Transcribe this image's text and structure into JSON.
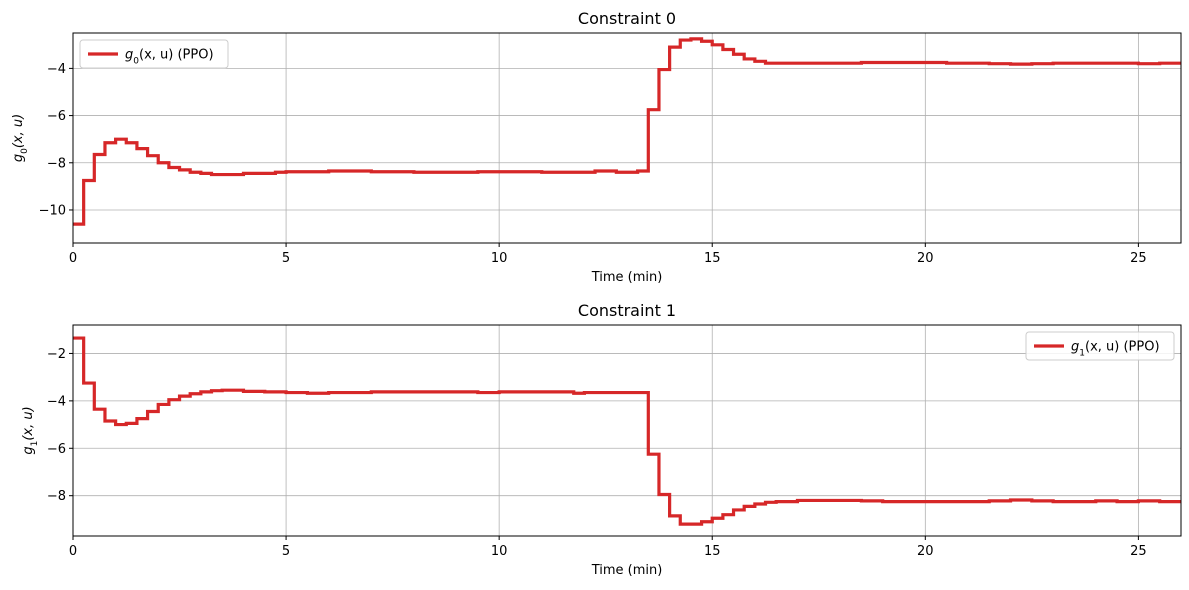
{
  "chart_data": [
    {
      "type": "line",
      "step": true,
      "title": "Constraint 0",
      "xlabel": "Time (min)",
      "ylabel": {
        "base": "g",
        "sub": "0",
        "rest": "(x, u)"
      },
      "xlim": [
        0,
        26
      ],
      "ylim": [
        -11.4,
        -2.5
      ],
      "xticks": [
        0,
        5,
        10,
        15,
        20,
        25
      ],
      "yticks": [
        -10,
        -8,
        -6,
        -4
      ],
      "grid": true,
      "legend_position": "top-left",
      "series": [
        {
          "legend": {
            "base": "g",
            "sub": "0",
            "rest": "(x, u) (PPO)"
          },
          "color": "#d62728",
          "x": [
            0,
            0.25,
            0.5,
            0.75,
            1.0,
            1.25,
            1.5,
            1.75,
            2.0,
            2.25,
            2.5,
            2.75,
            3.0,
            3.25,
            3.5,
            3.75,
            4.0,
            4.25,
            4.5,
            4.75,
            5.0,
            5.5,
            6.0,
            7.0,
            8.0,
            9.0,
            9.5,
            10.0,
            11.0,
            12.0,
            12.25,
            12.5,
            12.75,
            13.0,
            13.25,
            13.5,
            13.75,
            14.0,
            14.25,
            14.5,
            14.75,
            15.0,
            15.25,
            15.5,
            15.75,
            16.0,
            16.25,
            16.5,
            17.0,
            18.0,
            18.5,
            19.0,
            19.5,
            20.0,
            20.5,
            21.0,
            21.5,
            22.0,
            22.5,
            23.0,
            23.5,
            24.0,
            24.5,
            25.0,
            25.5,
            26.0
          ],
          "y": [
            -10.6,
            -8.75,
            -7.65,
            -7.15,
            -7.0,
            -7.15,
            -7.4,
            -7.7,
            -8.0,
            -8.2,
            -8.3,
            -8.4,
            -8.45,
            -8.5,
            -8.5,
            -8.5,
            -8.45,
            -8.45,
            -8.45,
            -8.4,
            -8.38,
            -8.38,
            -8.35,
            -8.38,
            -8.4,
            -8.4,
            -8.38,
            -8.38,
            -8.4,
            -8.4,
            -8.35,
            -8.35,
            -8.4,
            -8.4,
            -8.35,
            -5.75,
            -4.05,
            -3.1,
            -2.8,
            -2.75,
            -2.85,
            -3.0,
            -3.2,
            -3.4,
            -3.6,
            -3.7,
            -3.78,
            -3.78,
            -3.78,
            -3.78,
            -3.75,
            -3.75,
            -3.75,
            -3.75,
            -3.78,
            -3.78,
            -3.8,
            -3.82,
            -3.8,
            -3.78,
            -3.78,
            -3.78,
            -3.78,
            -3.8,
            -3.78,
            -3.78
          ]
        }
      ]
    },
    {
      "type": "line",
      "step": true,
      "title": "Constraint 1",
      "xlabel": "Time (min)",
      "ylabel": {
        "base": "g",
        "sub": "1",
        "rest": "(x, u)"
      },
      "xlim": [
        0,
        26
      ],
      "ylim": [
        -9.7,
        -0.8
      ],
      "xticks": [
        0,
        5,
        10,
        15,
        20,
        25
      ],
      "yticks": [
        -8,
        -6,
        -4,
        -2
      ],
      "grid": true,
      "legend_position": "top-right",
      "series": [
        {
          "legend": {
            "base": "g",
            "sub": "1",
            "rest": "(x, u) (PPO)"
          },
          "color": "#d62728",
          "x": [
            0,
            0.25,
            0.5,
            0.75,
            1.0,
            1.25,
            1.5,
            1.75,
            2.0,
            2.25,
            2.5,
            2.75,
            3.0,
            3.25,
            3.5,
            3.75,
            4.0,
            4.5,
            5.0,
            5.5,
            6.0,
            7.0,
            8.0,
            9.0,
            9.5,
            10.0,
            11.0,
            11.75,
            12.0,
            12.5,
            13.0,
            13.25,
            13.5,
            13.75,
            14.0,
            14.25,
            14.5,
            14.75,
            15.0,
            15.25,
            15.5,
            15.75,
            16.0,
            16.25,
            16.5,
            17.0,
            18.0,
            18.5,
            19.0,
            20.0,
            21.0,
            21.5,
            22.0,
            22.5,
            23.0,
            23.5,
            24.0,
            24.5,
            25.0,
            25.5,
            26.0
          ],
          "y": [
            -1.35,
            -3.25,
            -4.35,
            -4.85,
            -5.0,
            -4.95,
            -4.75,
            -4.45,
            -4.15,
            -3.95,
            -3.8,
            -3.7,
            -3.62,
            -3.57,
            -3.55,
            -3.55,
            -3.6,
            -3.62,
            -3.65,
            -3.68,
            -3.65,
            -3.62,
            -3.62,
            -3.62,
            -3.65,
            -3.62,
            -3.62,
            -3.68,
            -3.65,
            -3.65,
            -3.65,
            -3.65,
            -6.25,
            -7.95,
            -8.85,
            -9.2,
            -9.2,
            -9.1,
            -8.95,
            -8.8,
            -8.6,
            -8.45,
            -8.35,
            -8.28,
            -8.25,
            -8.2,
            -8.2,
            -8.22,
            -8.25,
            -8.25,
            -8.25,
            -8.22,
            -8.18,
            -8.22,
            -8.25,
            -8.25,
            -8.22,
            -8.25,
            -8.22,
            -8.25,
            -8.25
          ]
        }
      ]
    }
  ]
}
